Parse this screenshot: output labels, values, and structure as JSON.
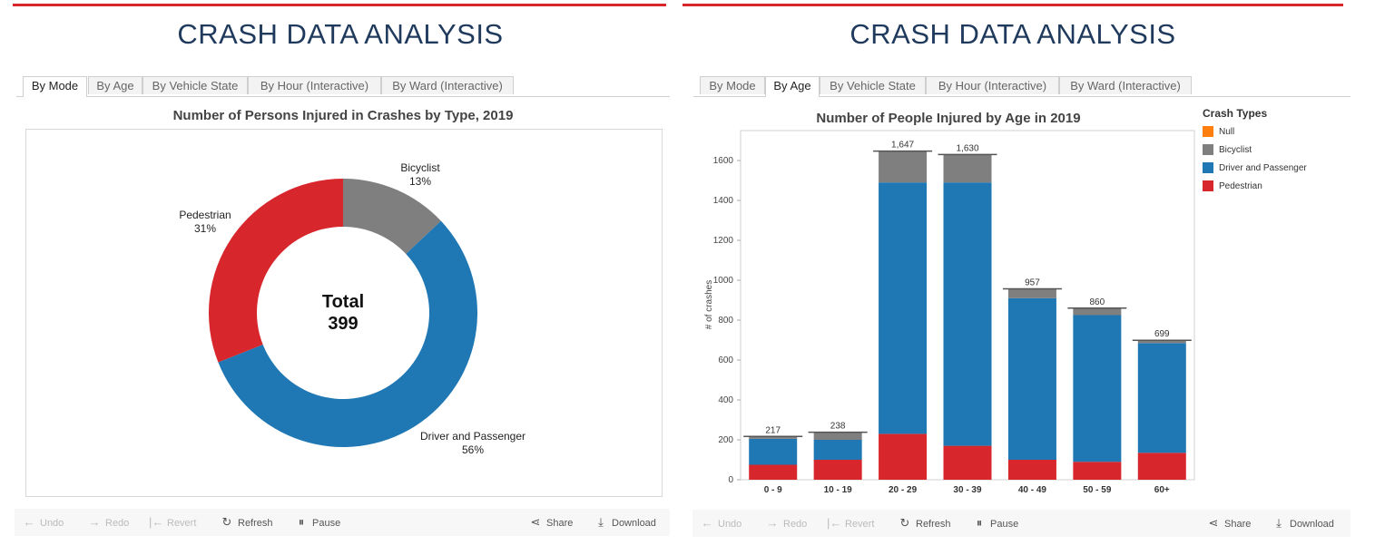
{
  "header": {
    "title": "CRASH DATA ANALYSIS"
  },
  "tabs": [
    {
      "label": "By Mode"
    },
    {
      "label": "By Age"
    },
    {
      "label": "By Vehicle State"
    },
    {
      "label": "By Hour (Interactive)"
    },
    {
      "label": "By Ward (Interactive)"
    }
  ],
  "toolbar": {
    "undo": "Undo",
    "redo": "Redo",
    "revert": "Revert",
    "refresh": "Refresh",
    "pause": "Pause",
    "share": "Share",
    "download": "Download"
  },
  "colors": {
    "brand_rule": "#d7262c",
    "title": "#1f3a5c",
    "pedestrian": "#d7262c",
    "bicyclist": "#7f7f7f",
    "driver_passenger": "#1f77b4",
    "null": "#ff7f0e"
  },
  "chart_data": [
    {
      "type": "pie",
      "title": "Number of Persons Injured in Crashes by Type, 2019",
      "center_label": "Total",
      "total": 399,
      "slices": [
        {
          "label": "Bicyclist",
          "percent": 13,
          "pct_label": "13%",
          "color": "#7f7f7f"
        },
        {
          "label": "Driver and Passenger",
          "percent": 56,
          "pct_label": "56%",
          "color": "#1f77b4"
        },
        {
          "label": "Pedestrian",
          "percent": 31,
          "pct_label": "31%",
          "color": "#d7262c"
        }
      ]
    },
    {
      "type": "bar",
      "stacked": true,
      "title": "Number of People Injured by Age in 2019",
      "ylabel": "# of crashes",
      "xlabel": "",
      "ylim": [
        0,
        1750
      ],
      "yticks": [
        0,
        200,
        400,
        600,
        800,
        1000,
        1200,
        1400,
        1600
      ],
      "categories": [
        "0 - 9",
        "10 - 19",
        "20 - 29",
        "30 - 39",
        "40 - 49",
        "50 - 59",
        "60+"
      ],
      "totals": [
        217,
        238,
        1647,
        1630,
        957,
        860,
        699
      ],
      "total_labels": [
        "217",
        "238",
        "1,647",
        "1,630",
        "957",
        "860",
        "699"
      ],
      "series": [
        {
          "name": "Pedestrian",
          "color": "#d7262c",
          "values": [
            75,
            100,
            230,
            170,
            100,
            90,
            135
          ]
        },
        {
          "name": "Driver and Passenger",
          "color": "#1f77b4",
          "values": [
            130,
            100,
            1260,
            1320,
            810,
            735,
            550
          ]
        },
        {
          "name": "Bicyclist",
          "color": "#7f7f7f",
          "values": [
            12,
            38,
            157,
            140,
            47,
            35,
            14
          ]
        },
        {
          "name": "Null",
          "color": "#ff7f0e",
          "values": [
            0,
            0,
            0,
            0,
            0,
            0,
            0
          ]
        }
      ],
      "legend": {
        "title": "Crash Types",
        "position": "right",
        "items": [
          {
            "label": "Null",
            "color": "#ff7f0e"
          },
          {
            "label": "Bicyclist",
            "color": "#7f7f7f"
          },
          {
            "label": "Driver and Passenger",
            "color": "#1f77b4"
          },
          {
            "label": "Pedestrian",
            "color": "#d7262c"
          }
        ]
      }
    }
  ]
}
